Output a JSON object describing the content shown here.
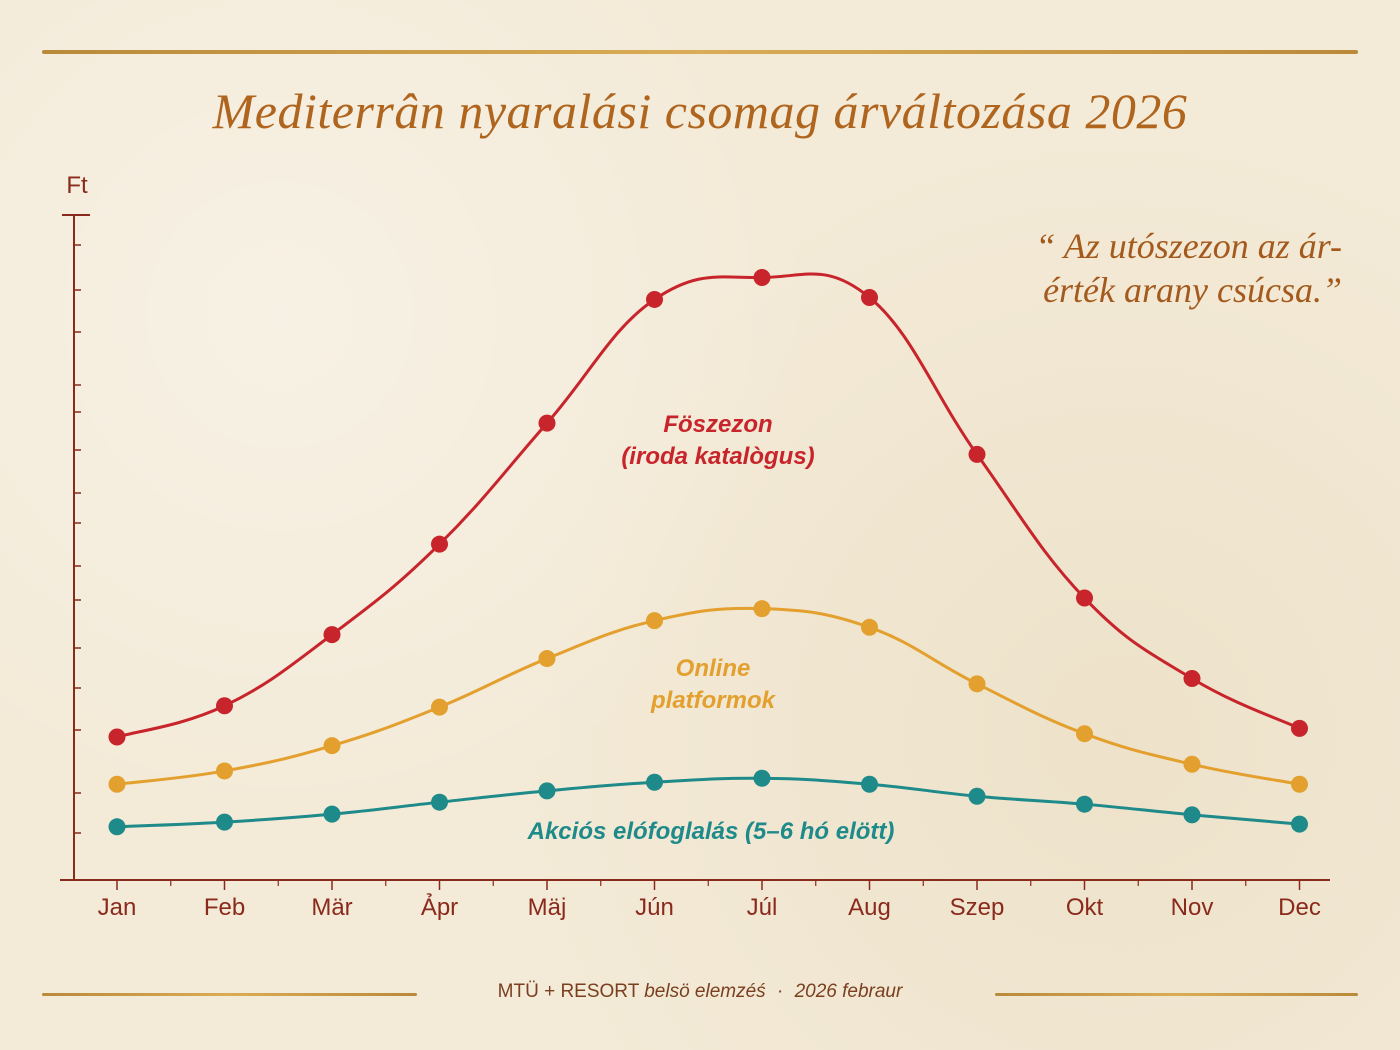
{
  "title": "Mediterrân nyaralási csomag árváltozása 2026",
  "quote": "“Az utószezon az ár-érték arany csúcsa.”",
  "quote_lines": [
    "“ Az utószezon az ár-",
    "érték arany csúcsa.”"
  ],
  "footer": {
    "source_main": "MTÜ + RESORT",
    "source_italic": "belsö elemzéś",
    "separator": "·",
    "date": "2026  febraur"
  },
  "colors": {
    "red": "#c8242b",
    "orange": "#e3a02e",
    "teal": "#1e8a8a",
    "axis": "#8a2a1c",
    "title": "#b0651e",
    "rule": "#c99a45"
  },
  "chart_data": {
    "type": "line",
    "ylabel": "Ft",
    "xlabel": "",
    "categories": [
      "Jan",
      "Feb",
      "Mär",
      "Ảpr",
      "Mäj",
      "Jún",
      "Júl",
      "Aug",
      "Szep",
      "Okt",
      "Nov",
      "Dec"
    ],
    "ylim": [
      0,
      100
    ],
    "grid": false,
    "series": [
      {
        "name": "Föszezon\n(iroda katalògus)",
        "label_lines": [
          "Föszezon",
          "(iroda katalògus)"
        ],
        "color": "#c8242b",
        "values": [
          21.5,
          26.2,
          36.9,
          50.5,
          68.7,
          87.3,
          90.6,
          87.6,
          64.0,
          42.4,
          30.3,
          22.8
        ]
      },
      {
        "name": "Online\nplatformok",
        "label_lines": [
          "Online",
          "platformok"
        ],
        "color": "#e3a02e",
        "values": [
          14.4,
          16.4,
          20.2,
          26.0,
          33.3,
          39.0,
          40.8,
          38.0,
          29.5,
          22.0,
          17.4,
          14.4
        ]
      },
      {
        "name": "Akciós elófoglalás (5–6 hó elött)",
        "label_lines": [
          "Akciós elófoglalás (5–6 hó elött)"
        ],
        "color": "#1e8a8a",
        "values": [
          8.0,
          8.7,
          9.9,
          11.7,
          13.4,
          14.7,
          15.3,
          14.4,
          12.6,
          11.4,
          9.8,
          8.4
        ]
      }
    ]
  }
}
